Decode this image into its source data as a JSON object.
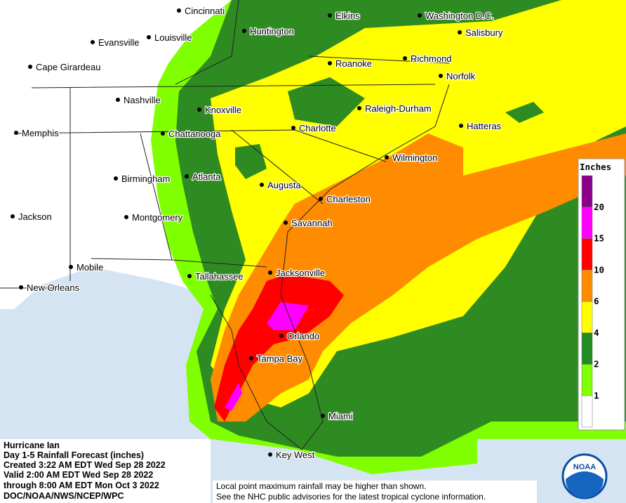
{
  "title": "Hurricane Ian",
  "info": [
    "Hurricane Ian",
    "Day 1-5 Rainfall Forecast (inches)",
    "Created 3:22 AM EDT Wed Sep 28 2022",
    "Valid 2:00 AM EDT Wed Sep 28 2022",
    "through 8:00 AM EDT Mon Oct 3 2022",
    "DOC/NOAA/NWS/NCEP/WPC"
  ],
  "note": [
    "Local point maximum rainfall may be higher than shown.",
    "See the NHC public advisories for the latest tropical cyclone information."
  ],
  "cities": [
    "Cincinnati",
    "Elkins",
    "Washington D.C.",
    "Huntington",
    "Salisbury",
    "Evansville",
    "Louisville",
    "Roanoke",
    "Richmond",
    "Cape Girardeau",
    "Norfolk",
    "Nashville",
    "Knoxville",
    "Raleigh-Durham",
    "Hatteras",
    "Memphis",
    "Chattanooga",
    "Charlotte",
    "Wilmington",
    "Birmingham",
    "Atlanta",
    "Augusta",
    "Charleston",
    "Jackson",
    "Montgomery",
    "Savannah",
    "Mobile",
    "Tallahassee",
    "Jacksonville",
    "New Orleans",
    "Orlando",
    "Tampa Bay",
    "Miami",
    "Key West"
  ],
  "legend": {
    "title": "Inches",
    "ticks": [
      1,
      2,
      4,
      6,
      10,
      15,
      20
    ],
    "colors": [
      "#ffffff",
      "#7fff00",
      "#228b22",
      "#ffff00",
      "#ff8c00",
      "#ff0000",
      "#ff00ff",
      "#8b008b"
    ]
  },
  "logo": "NOAA"
}
